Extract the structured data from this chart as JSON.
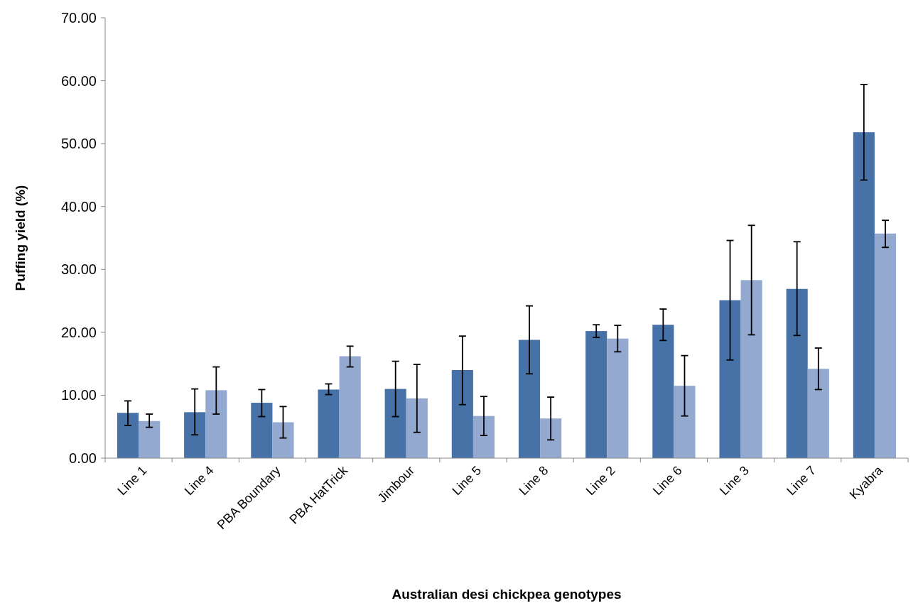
{
  "chart_data": {
    "type": "bar",
    "xlabel": "Australian desi chickpea genotypes",
    "ylabel": "Puffing yield (%)",
    "categories": [
      "Line 1",
      "Line 4",
      "PBA Boundary",
      "PBA HatTrick",
      "Jimbour",
      "Line 5",
      "Line 8",
      "Line 2",
      "Line 6",
      "Line 3",
      "Line 7",
      "Kyabra"
    ],
    "series": [
      {
        "color": "#4672a8",
        "values": [
          7.2,
          7.3,
          8.8,
          10.9,
          11.0,
          14.0,
          18.8,
          20.2,
          21.2,
          25.1,
          26.9,
          51.8
        ],
        "errors": [
          [
            5.2,
            9.1
          ],
          [
            3.7,
            11.0
          ],
          [
            6.6,
            10.9
          ],
          [
            10.1,
            11.8
          ],
          [
            6.6,
            15.4
          ],
          [
            8.5,
            19.4
          ],
          [
            13.4,
            24.2
          ],
          [
            19.2,
            21.2
          ],
          [
            18.7,
            23.7
          ],
          [
            15.6,
            34.6
          ],
          [
            19.5,
            34.4
          ],
          [
            44.2,
            59.4
          ]
        ]
      },
      {
        "color": "#94a9d0",
        "values": [
          5.9,
          10.8,
          5.7,
          16.2,
          9.5,
          6.7,
          6.3,
          19.0,
          11.5,
          28.3,
          14.2,
          35.7
        ],
        "errors": [
          [
            4.9,
            7.0
          ],
          [
            7.0,
            14.5
          ],
          [
            3.2,
            8.2
          ],
          [
            14.5,
            17.8
          ],
          [
            4.1,
            14.9
          ],
          [
            3.6,
            9.8
          ],
          [
            2.9,
            9.7
          ],
          [
            16.9,
            21.1
          ],
          [
            6.7,
            16.3
          ],
          [
            19.6,
            37.0
          ],
          [
            10.9,
            17.5
          ],
          [
            33.5,
            37.8
          ]
        ]
      }
    ],
    "ylim": [
      0,
      70
    ],
    "yticks": [
      {
        "value": 0,
        "label": "0.00"
      },
      {
        "value": 10,
        "label": "10.00"
      },
      {
        "value": 20,
        "label": "20.00"
      },
      {
        "value": 30,
        "label": "30.00"
      },
      {
        "value": 40,
        "label": "40.00"
      },
      {
        "value": 50,
        "label": "50.00"
      },
      {
        "value": 60,
        "label": "60.00"
      },
      {
        "value": 70,
        "label": "70.00"
      }
    ]
  }
}
